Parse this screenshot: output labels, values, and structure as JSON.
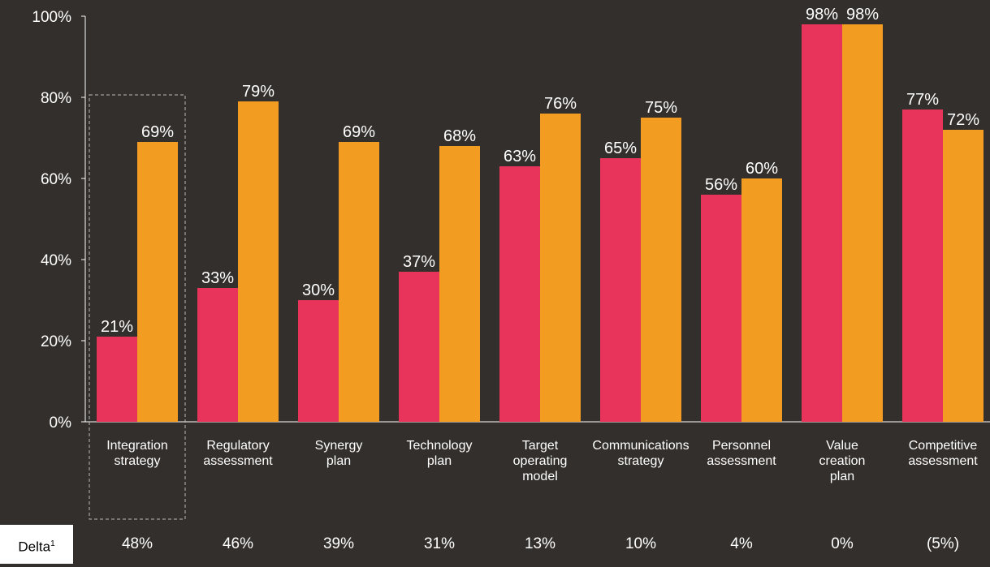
{
  "chart_data": {
    "type": "bar",
    "categories": [
      "Integration\nstrategy",
      "Regulatory\nassessment",
      "Synergy\nplan",
      "Technology\nplan",
      "Target\noperating\nmodel",
      "Communications\nstrategy",
      "Personnel\nassessment",
      "Value\ncreation\nplan",
      "Competitive\nassessment"
    ],
    "series": [
      {
        "color": "#e8335a",
        "values": [
          21,
          33,
          30,
          37,
          63,
          65,
          56,
          98,
          77
        ],
        "value_labels": [
          "21%",
          "33%",
          "30%",
          "37%",
          "63%",
          "65%",
          "56%",
          "98%",
          "77%"
        ]
      },
      {
        "color": "#f39c22",
        "values": [
          69,
          79,
          69,
          68,
          76,
          75,
          60,
          98,
          72
        ],
        "value_labels": [
          "69%",
          "79%",
          "69%",
          "68%",
          "76%",
          "75%",
          "60%",
          "98%",
          "72%"
        ]
      }
    ],
    "ylim": [
      0,
      100
    ],
    "yticks": [
      {
        "value": 0,
        "label": "0%"
      },
      {
        "value": 20,
        "label": "20%"
      },
      {
        "value": 40,
        "label": "40%"
      },
      {
        "value": 60,
        "label": "60%"
      },
      {
        "value": 80,
        "label": "80%"
      },
      {
        "value": 100,
        "label": "100%"
      }
    ],
    "grid": false,
    "delta_row": {
      "label": "Delta",
      "note": "1",
      "values": [
        "48%",
        "46%",
        "39%",
        "31%",
        "13%",
        "10%",
        "4%",
        "0%",
        "(5%)"
      ]
    }
  }
}
